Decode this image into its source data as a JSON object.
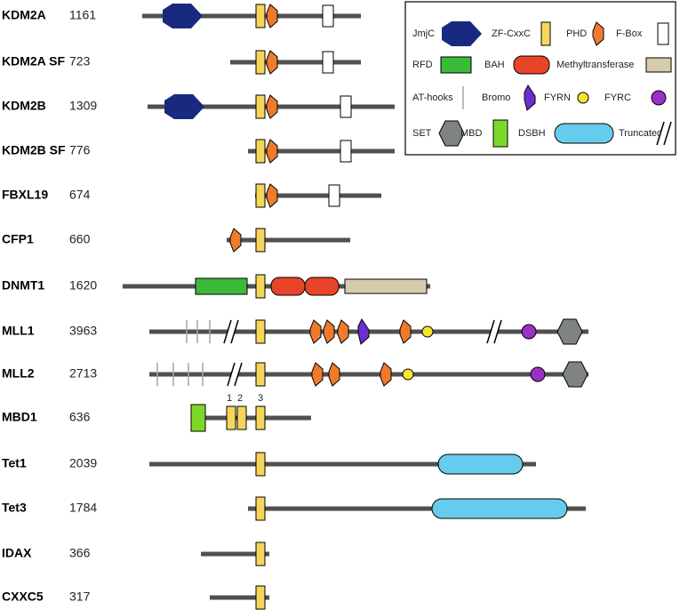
{
  "proteins": [
    {
      "name": "KDM2A",
      "length": 1161
    },
    {
      "name": "KDM2A SF",
      "length": 723
    },
    {
      "name": "KDM2B",
      "length": 1309
    },
    {
      "name": "KDM2B SF",
      "length": 776
    },
    {
      "name": "FBXL19",
      "length": 674
    },
    {
      "name": "CFP1",
      "length": 660
    },
    {
      "name": "DNMT1",
      "length": 1620
    },
    {
      "name": "MLL1",
      "length": 3963
    },
    {
      "name": "MLL2",
      "length": 2713
    },
    {
      "name": "MBD1",
      "length": 636
    },
    {
      "name": "Tet1",
      "length": 2039
    },
    {
      "name": "Tet3",
      "length": 1784
    },
    {
      "name": "IDAX",
      "length": 366
    },
    {
      "name": "CXXC5",
      "length": 317
    }
  ],
  "mbd1_labels": [
    "1",
    "2",
    "3"
  ],
  "legend": [
    "JmjC",
    "ZF-CxxC",
    "PHD",
    "F-Box",
    "RFD",
    "BAH",
    "Methyltransferase",
    "AT-hooks",
    "Bromo",
    "FYRN",
    "FYRC",
    "SET",
    "MBD",
    "DSBH",
    "Truncated"
  ]
}
